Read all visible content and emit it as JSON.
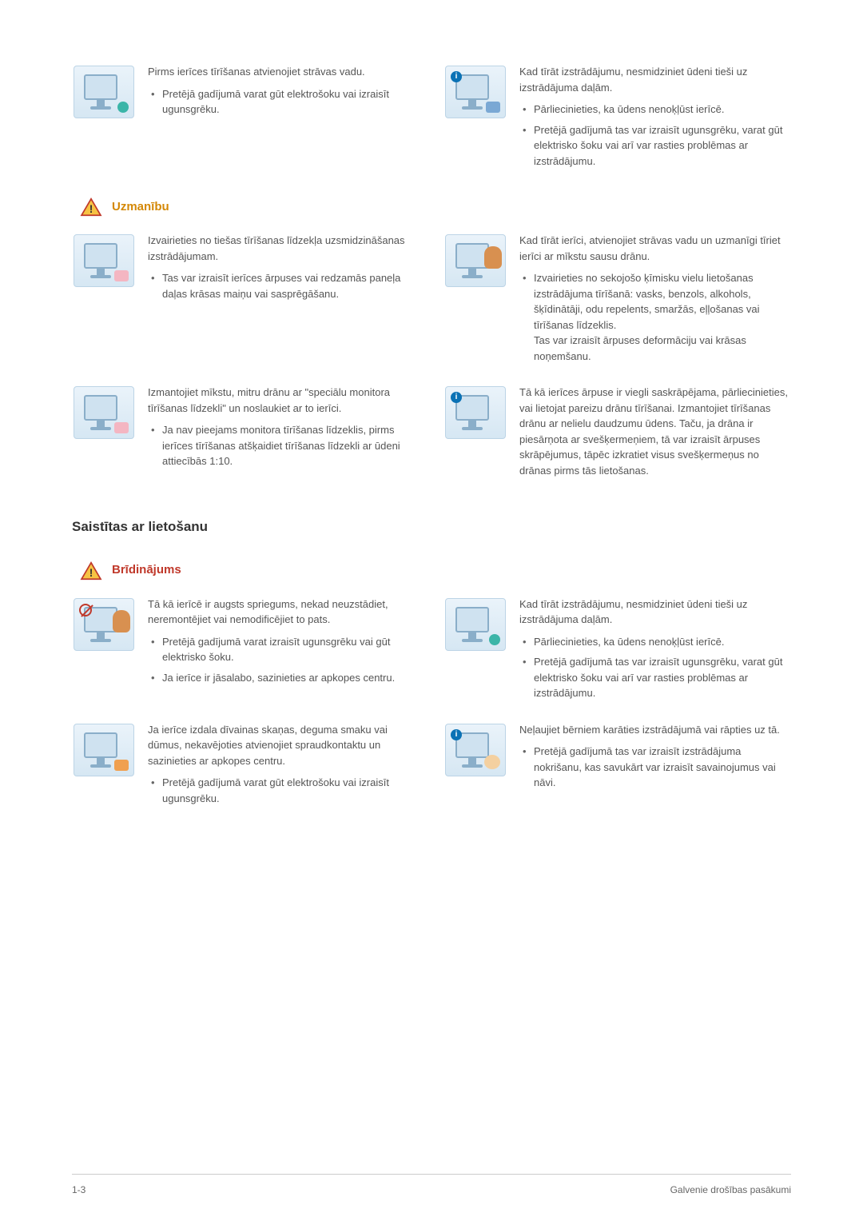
{
  "rows_top": [
    {
      "left": {
        "main": "Pirms ierīces tīrīšanas atvienojiet strāvas vadu.",
        "bullets": [
          "Pretējā gadījumā varat gūt elektrošoku vai izraisīt ugunsgrēku."
        ],
        "illus": {
          "info": false,
          "no": false,
          "accent": "teal"
        }
      },
      "right": {
        "main": "Kad tīrāt izstrādājumu, nesmidziniet ūdeni tieši uz izstrādājuma daļām.",
        "bullets": [
          "Pārliecinieties, ka ūdens nenoķļūst ierīcē.",
          "Pretējā gadījumā tas var izraisīt ugunsgrēku, varat gūt elektrisko šoku vai arī var rasties problēmas ar izstrādājumu."
        ],
        "illus": {
          "info": true,
          "no": false,
          "accent": "blue"
        }
      }
    }
  ],
  "caution_label": "Uzmanību",
  "rows_caution": [
    {
      "left": {
        "main": "Izvairieties no tiešas tīrīšanas līdzekļa uzsmidzināšanas izstrādājumam.",
        "bullets": [
          "Tas var izraisīt ierīces ārpuses vai redzamās paneļa daļas krāsas maiņu vai sasprēgāšanu."
        ],
        "illus": {
          "info": false,
          "no": false,
          "accent": "pink"
        }
      },
      "right": {
        "main": "Kad tīrāt ierīci, atvienojiet strāvas vadu un uzmanīgi tīriet ierīci ar mīkstu sausu drānu.",
        "bullets": [
          "Izvairieties no sekojošo ķīmisku vielu lietošanas izstrādājuma tīrīšanā: vasks, benzols, alkohols, šķīdinātāji, odu repelents, smaržās, eļļošanas vai tīrīšanas līdzeklis.\nTas var izraisīt ārpuses deformāciju vai krāsas noņemšanu."
        ],
        "illus": {
          "info": false,
          "no": false,
          "accent": "",
          "person": true
        }
      }
    },
    {
      "left": {
        "main": "Izmantojiet mīkstu, mitru drānu ar \"speciālu monitora tīrīšanas līdzekli\" un noslaukiet ar to ierīci.",
        "bullets": [
          "Ja nav pieejams monitora tīrīšanas līdzeklis, pirms ierīces tīrīšanas atšķaidiet tīrīšanas līdzekli ar ūdeni attiecībās 1:10."
        ],
        "illus": {
          "info": false,
          "no": false,
          "accent": "pink"
        }
      },
      "right": {
        "main": "Tā kā ierīces ārpuse ir viegli saskrāpējama, pārliecinieties, vai lietojat pareizu drānu tīrīšanai. Izmantojiet tīrīšanas drānu ar nelielu daudzumu ūdens. Taču, ja drāna ir piesārņota ar svešķermeņiem, tā var izraisīt ārpuses skrāpējumus, tāpēc izkratiet visus svešķermeņus no drānas pirms tās lietošanas.",
        "bullets": [],
        "illus": {
          "info": true,
          "no": false,
          "accent": ""
        }
      }
    }
  ],
  "section_usage": "Saistītas ar lietošanu",
  "warning_label": "Brīdinājums",
  "rows_warning": [
    {
      "left": {
        "main": "Tā kā ierīcē ir augsts spriegums, nekad neuzstādiet, neremontējiet vai nemodificējiet to pats.",
        "bullets": [
          "Pretējā gadījumā varat izraisīt ugunsgrēku vai gūt elektrisko šoku.",
          "Ja ierīce ir jāsalabo, sazinieties ar apkopes centru."
        ],
        "illus": {
          "info": false,
          "no": true,
          "accent": "",
          "person": true
        }
      },
      "right": {
        "main": "Kad tīrāt izstrādājumu, nesmidziniet ūdeni tieši uz izstrādājuma daļām.",
        "bullets": [
          "Pārliecinieties, ka ūdens nenoķļūst ierīcē.",
          "Pretējā gadījumā tas var izraisīt ugunsgrēku, varat gūt elektrisko šoku vai arī var rasties problēmas ar izstrādājumu."
        ],
        "illus": {
          "info": false,
          "no": false,
          "accent": "teal"
        }
      }
    },
    {
      "left": {
        "main": "Ja ierīce izdala dīvainas skaņas, deguma smaku vai dūmus, nekavējoties atvienojiet spraudkontaktu un sazinieties ar apkopes centru.",
        "bullets": [
          "Pretējā gadījumā varat gūt elektrošoku vai izraisīt ugunsgrēku."
        ],
        "illus": {
          "info": false,
          "no": false,
          "accent": "orange"
        }
      },
      "right": {
        "main": "Neļaujiet bērniem karāties izstrādājumā vai rāpties uz tā.",
        "bullets": [
          "Pretējā gadījumā tas var izraisīt izstrādājuma nokrišanu, kas savukārt var izraisīt savainojumus vai nāvi."
        ],
        "illus": {
          "info": true,
          "no": false,
          "accent": "",
          "baby": true
        }
      }
    }
  ],
  "footer_left": "1-3",
  "footer_right": "Galvenie drošības pasākumi",
  "colors": {
    "caution": "#d48806",
    "warning": "#c0392b",
    "triangle_fill": "#f6c344",
    "triangle_stroke": "#c0392b"
  }
}
